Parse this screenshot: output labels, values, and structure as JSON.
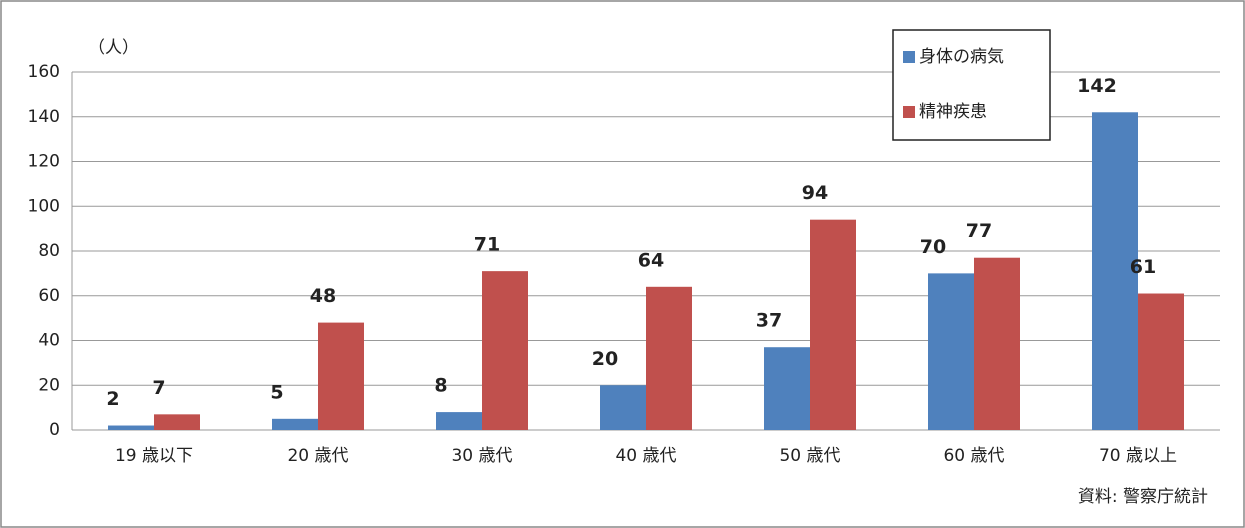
{
  "chart_data": {
    "type": "bar",
    "y_unit_label": "（人）",
    "source": "資料: 警察庁統計",
    "categories": [
      "19 歳以下",
      "20 歳代",
      "30 歳代",
      "40 歳代",
      "50 歳代",
      "60 歳代",
      "70 歳以上"
    ],
    "series": [
      {
        "name": "身体の病気",
        "color": "#4f81bd",
        "values": [
          2,
          5,
          8,
          20,
          37,
          70,
          142
        ]
      },
      {
        "name": "精神疾患",
        "color": "#c0504d",
        "values": [
          7,
          48,
          71,
          64,
          94,
          77,
          61
        ]
      }
    ],
    "ylim": [
      0,
      160
    ],
    "yticks": [
      0,
      20,
      40,
      60,
      80,
      100,
      120,
      140,
      160
    ],
    "grid": true,
    "legend": "upper right"
  }
}
